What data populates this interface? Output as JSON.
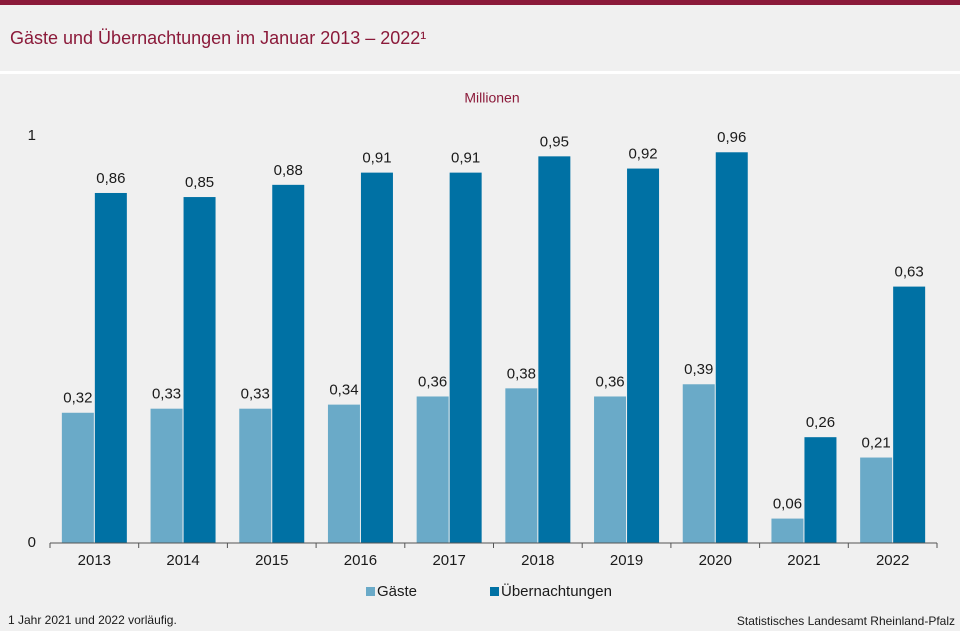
{
  "chart_data": {
    "type": "bar",
    "title": "Gäste und Übernachtungen im Januar 2013 – 2022¹",
    "y_label": "Millionen",
    "categories": [
      "2013",
      "2014",
      "2015",
      "2016",
      "2017",
      "2018",
      "2019",
      "2020",
      "2021",
      "2022"
    ],
    "series": [
      {
        "name": "Gäste",
        "color": "#6aaac8",
        "values": [
          0.32,
          0.33,
          0.33,
          0.34,
          0.36,
          0.38,
          0.36,
          0.39,
          0.06,
          0.21
        ],
        "value_labels": [
          "0,32",
          "0,33",
          "0,33",
          "0,34",
          "0,36",
          "0,38",
          "0,36",
          "0,39",
          "0,06",
          "0,21"
        ]
      },
      {
        "name": "Übernachtungen",
        "color": "#0071a4",
        "values": [
          0.86,
          0.85,
          0.88,
          0.91,
          0.91,
          0.95,
          0.92,
          0.96,
          0.26,
          0.63
        ],
        "value_labels": [
          "0,86",
          "0,85",
          "0,88",
          "0,91",
          "0,91",
          "0,95",
          "0,92",
          "0,96",
          "0,26",
          "0,63"
        ]
      }
    ],
    "ylim": [
      0,
      1
    ],
    "yticks": [
      0,
      1
    ],
    "grid": false,
    "footnote": "1 Jahr 2021 und 2022 vorläufig.",
    "source": "Statistisches Landesamt Rheinland-Pfalz"
  }
}
